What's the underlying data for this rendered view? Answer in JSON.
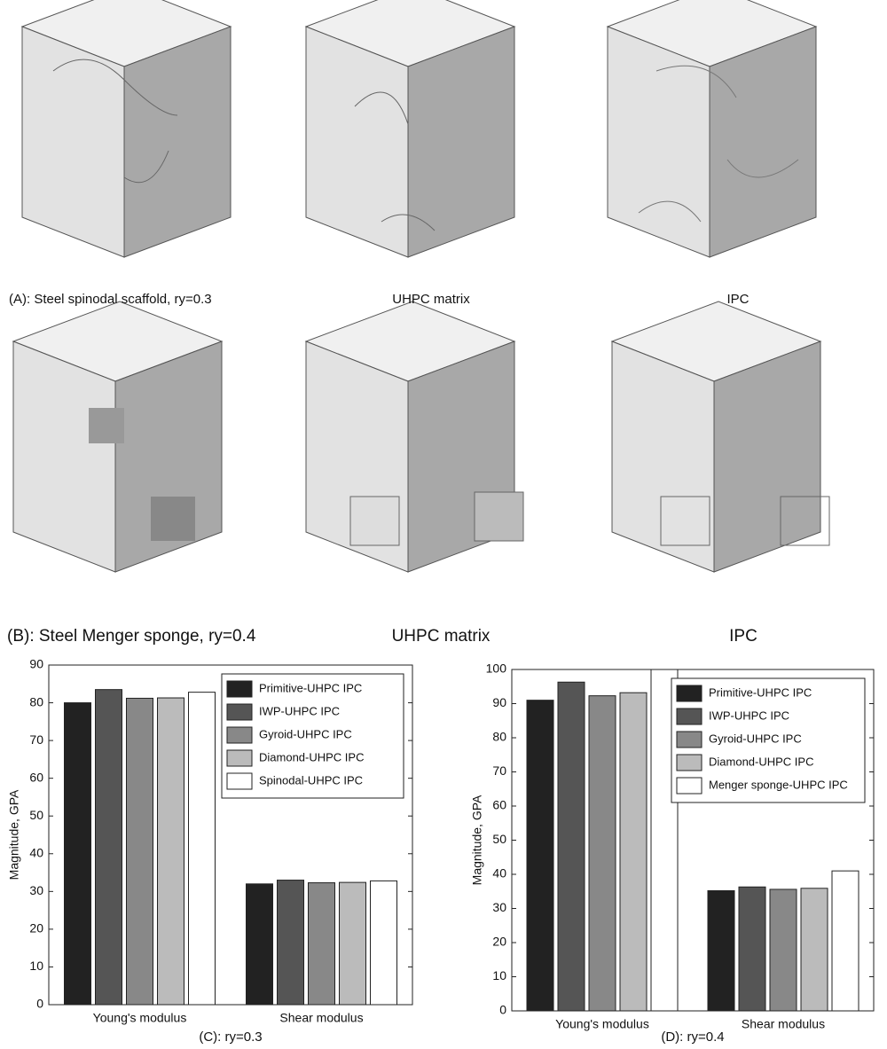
{
  "figure": {
    "captions": [
      "(A):  Steel spinodal scaffold, ry=0.3",
      "UHPC matrix",
      "IPC",
      "(B):  Steel Menger sponge, ry=0.4",
      "UHPC matrix",
      "IPC"
    ]
  },
  "chart_data": [
    {
      "type": "bar",
      "caption": "(C): ry=0.3",
      "y_label": "Magnitude, GPA",
      "categories": [
        "Young's modulus",
        "Shear modulus"
      ],
      "series": [
        {
          "name": "Primitive-UHPC IPC",
          "color": "#222222",
          "values": [
            80,
            32
          ]
        },
        {
          "name": "IWP-UHPC IPC",
          "color": "#555555",
          "values": [
            83.5,
            33
          ]
        },
        {
          "name": "Gyroid-UHPC IPC",
          "color": "#888888",
          "values": [
            81.2,
            32.3
          ]
        },
        {
          "name": "Diamond-UHPC IPC",
          "color": "#bbbbbb",
          "values": [
            81.3,
            32.4
          ]
        },
        {
          "name": "Spinodal-UHPC IPC",
          "color": "#ffffff",
          "values": [
            82.8,
            32.8
          ]
        }
      ],
      "ylim": [
        0,
        90
      ],
      "yticks": [
        0,
        10,
        20,
        30,
        40,
        50,
        60,
        70,
        80,
        90
      ],
      "legend": "upper right"
    },
    {
      "type": "bar",
      "caption": "(D): ry=0.4",
      "y_label": "Magnitude, GPA",
      "categories": [
        "Young's modulus",
        "Shear modulus"
      ],
      "series": [
        {
          "name": "Primitive-UHPC IPC",
          "color": "#222222",
          "values": [
            91,
            35.2
          ]
        },
        {
          "name": "IWP-UHPC IPC",
          "color": "#555555",
          "values": [
            96.3,
            36.3
          ]
        },
        {
          "name": "Gyroid-UHPC IPC",
          "color": "#888888",
          "values": [
            92.3,
            35.6
          ]
        },
        {
          "name": "Diamond-UHPC IPC",
          "color": "#bbbbbb",
          "values": [
            93.2,
            35.9
          ]
        },
        {
          "name": "Menger sponge-UHPC IPC",
          "color": "#ffffff",
          "values": [
            100,
            41
          ]
        }
      ],
      "ylim": [
        0,
        100
      ],
      "yticks": [
        0,
        10,
        20,
        30,
        40,
        50,
        60,
        70,
        80,
        90,
        100
      ],
      "legend": "upper right"
    }
  ]
}
